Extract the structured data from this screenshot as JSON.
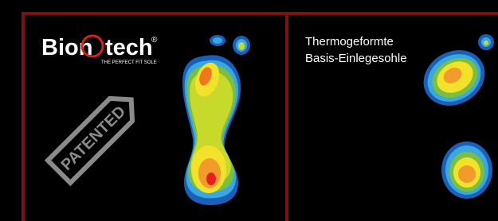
{
  "logo": {
    "name_start": "Bion",
    "name_end": "tech",
    "registered": "®",
    "tagline": "THE PERFECT FIT SOLE"
  },
  "badge": "PATENTED",
  "caption": {
    "line1": "Thermogeformte",
    "line2": "Basis-Einlegesohle"
  }
}
